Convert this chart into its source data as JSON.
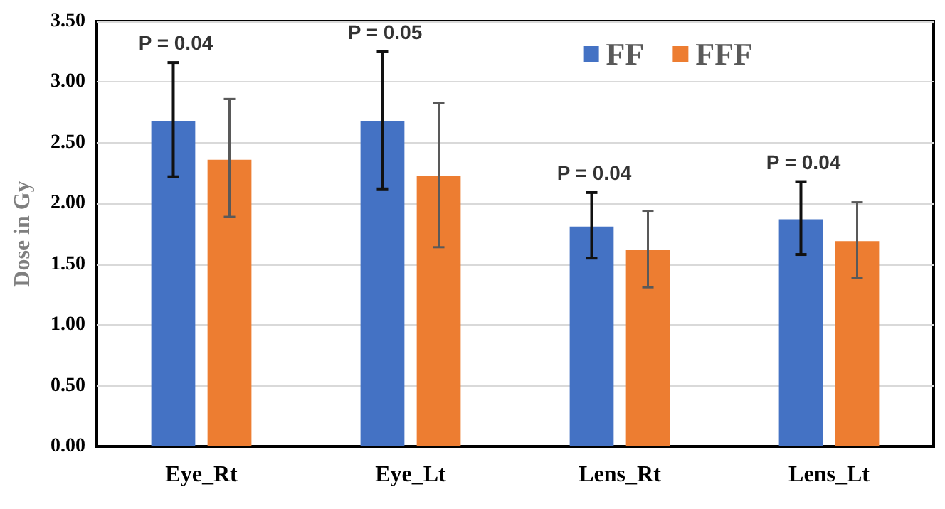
{
  "chart_data": {
    "type": "bar",
    "ylabel": "Dose in Gy",
    "categories": [
      "Eye_Rt",
      "Eye_Lt",
      "Lens_Rt",
      "Lens_Lt"
    ],
    "series": [
      {
        "name": "FF",
        "color": "#4472c4",
        "values": [
          2.68,
          2.68,
          1.81,
          1.87
        ],
        "errors": [
          [
            2.22,
            3.16
          ],
          [
            2.12,
            3.25
          ],
          [
            1.55,
            2.09
          ],
          [
            1.58,
            2.18
          ]
        ]
      },
      {
        "name": "FFF",
        "color": "#ed7d31",
        "values": [
          2.36,
          2.23,
          1.62,
          1.69
        ],
        "errors": [
          [
            1.89,
            2.86
          ],
          [
            1.64,
            2.83
          ],
          [
            1.31,
            1.94
          ],
          [
            1.39,
            2.01
          ]
        ]
      }
    ],
    "ylim": [
      0,
      3.5
    ],
    "yticks": [
      {
        "value": 0,
        "label": "0.00"
      },
      {
        "value": 0.5,
        "label": "0.50"
      },
      {
        "value": 1,
        "label": "1.00"
      },
      {
        "value": 1.5,
        "label": "1.50"
      },
      {
        "value": 2,
        "label": "2.00"
      },
      {
        "value": 2.5,
        "label": "2.50"
      },
      {
        "value": 3,
        "label": "3.00"
      },
      {
        "value": 3.5,
        "label": "3.50"
      }
    ],
    "grid": "y",
    "legend": "top right",
    "annotations": [
      "P = 0.04",
      "P = 0.05",
      "P = 0.04",
      "P = 0.04"
    ]
  }
}
